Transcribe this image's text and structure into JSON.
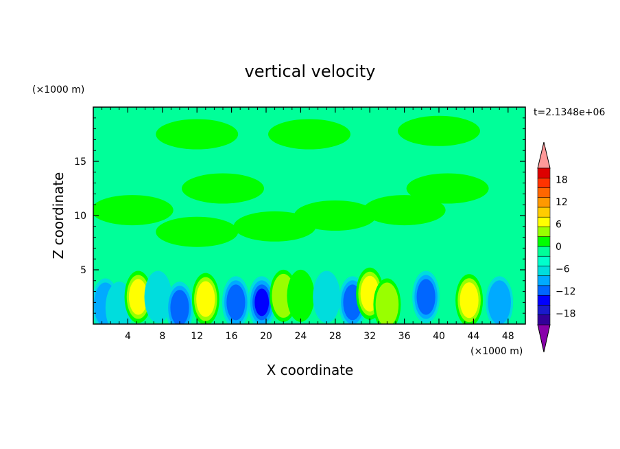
{
  "chart_data": {
    "type": "heatmap",
    "title": "vertical velocity",
    "xlabel": "X coordinate",
    "ylabel": "Z coordinate",
    "x_unit": "(×1000 m)",
    "y_unit": "(×1000 m)",
    "time_label": "t=2.1348e+06",
    "xlim": [
      0,
      50
    ],
    "ylim": [
      0,
      20
    ],
    "x_ticks": [
      "4",
      "8",
      "12",
      "16",
      "20",
      "24",
      "28",
      "32",
      "36",
      "40",
      "44",
      "48"
    ],
    "y_ticks": [
      "5",
      "10",
      "15"
    ],
    "colorbar": {
      "labels": [
        "18",
        "12",
        "6",
        "0",
        "−6",
        "−12",
        "−18"
      ],
      "levels": [
        -21,
        -18,
        -15,
        -12,
        -9,
        -6,
        -3,
        0,
        3,
        6,
        9,
        12,
        15,
        18,
        21
      ],
      "colors": [
        "#330099",
        "#1a1acc",
        "#0000ff",
        "#0066ff",
        "#00aaff",
        "#00dddd",
        "#00ffcc",
        "#00ff99",
        "#00ff00",
        "#99ff00",
        "#ffff00",
        "#ffcc00",
        "#ff9900",
        "#ff6600",
        "#ff3300",
        "#dd0000"
      ],
      "over_color": "#ff9999",
      "under_color": "#8800aa"
    },
    "background_value_color": "#00ff99",
    "features": [
      {
        "x": 0.6,
        "z": 2.3,
        "w": -1
      },
      {
        "x": 1.4,
        "z": 1.8,
        "w": -8
      },
      {
        "x": 3.0,
        "z": 1.5,
        "w": -3
      },
      {
        "x": 5.2,
        "z": 2.5,
        "w": 9
      },
      {
        "x": 7.5,
        "z": 2.5,
        "w": -4
      },
      {
        "x": 10.0,
        "z": 1.5,
        "w": -10
      },
      {
        "x": 13.0,
        "z": 2.3,
        "w": 11
      },
      {
        "x": 16.5,
        "z": 2.0,
        "w": -9
      },
      {
        "x": 19.5,
        "z": 2.0,
        "w": -14
      },
      {
        "x": 22.0,
        "z": 2.6,
        "w": 6
      },
      {
        "x": 24.0,
        "z": 2.6,
        "w": 4
      },
      {
        "x": 27.0,
        "z": 2.5,
        "w": -3
      },
      {
        "x": 30.0,
        "z": 2.0,
        "w": -9
      },
      {
        "x": 32.0,
        "z": 2.8,
        "w": 10
      },
      {
        "x": 34.0,
        "z": 1.8,
        "w": 7
      },
      {
        "x": 38.5,
        "z": 2.5,
        "w": -9
      },
      {
        "x": 43.5,
        "z": 2.2,
        "w": 10
      },
      {
        "x": 47.0,
        "z": 2.0,
        "w": -7
      }
    ],
    "green_regions_above": [
      {
        "x": 4.5,
        "z": 10.5,
        "w": 1
      },
      {
        "x": 12.0,
        "z": 8.5,
        "w": 1
      },
      {
        "x": 15.0,
        "z": 12.5,
        "w": 1
      },
      {
        "x": 21.0,
        "z": 9.0,
        "w": 1
      },
      {
        "x": 28.0,
        "z": 10.0,
        "w": 1
      },
      {
        "x": 36.0,
        "z": 10.5,
        "w": 1
      },
      {
        "x": 41.0,
        "z": 12.5,
        "w": 1
      },
      {
        "x": 12.0,
        "z": 17.5,
        "w": 1
      },
      {
        "x": 25.0,
        "z": 17.5,
        "w": 1
      },
      {
        "x": 40.0,
        "z": 17.8,
        "w": 1
      }
    ]
  }
}
